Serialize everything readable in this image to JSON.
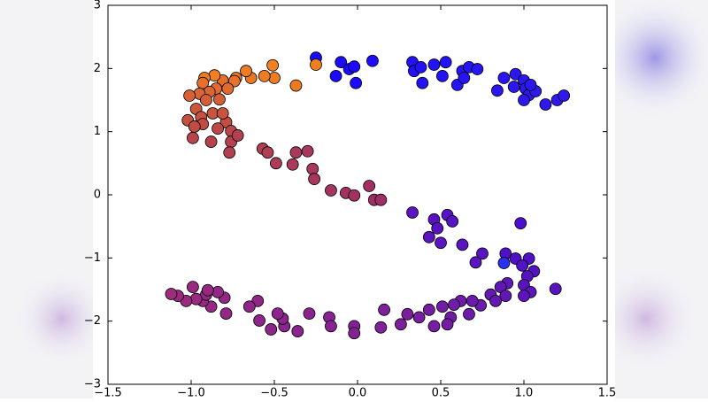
{
  "chart_data": {
    "type": "scatter",
    "x": [
      -0.25,
      -0.1,
      -0.13,
      -0.05,
      -0.02,
      -0.01,
      0.09,
      0.33,
      0.34,
      0.38,
      0.39,
      0.46,
      0.53,
      0.51,
      0.6,
      0.63,
      0.67,
      0.72,
      0.64,
      0.88,
      0.84,
      0.95,
      0.94,
      1.0,
      1.01,
      1.03,
      1.07,
      1.0,
      1.13,
      1.2,
      1.24,
      1.04,
      -0.25,
      -0.37,
      -0.51,
      -0.5,
      -0.56,
      -0.64,
      -0.67,
      -0.73,
      -0.81,
      -0.74,
      -0.86,
      -0.92,
      -0.93,
      -0.85,
      -0.89,
      -0.78,
      -0.95,
      -1.01,
      -0.91,
      -0.83,
      -0.97,
      -0.87,
      -0.94,
      -1.02,
      -0.93,
      -0.98,
      -0.79,
      -0.84,
      -0.76,
      -0.99,
      -0.88,
      -0.76,
      -0.77,
      -0.72,
      -0.81,
      -0.57,
      -0.54,
      -0.49,
      -0.39,
      -0.37,
      -0.3,
      -0.27,
      -0.26,
      -0.16,
      -0.07,
      -0.02,
      0.07,
      0.1,
      0.14,
      0.33,
      0.46,
      0.54,
      0.48,
      0.57,
      0.43,
      0.5,
      0.63,
      0.75,
      0.71,
      0.98,
      0.89,
      0.88,
      0.95,
      1.03,
      0.99,
      1.06,
      1.02,
      1.0,
      1.04,
      1.0,
      1.19,
      0.9,
      0.86,
      0.89,
      0.8,
      0.83,
      0.74,
      0.69,
      0.62,
      0.58,
      0.51,
      0.67,
      0.56,
      0.46,
      0.54,
      0.43,
      0.37,
      0.3,
      0.26,
      0.16,
      0.14,
      -0.02,
      -0.02,
      -0.17,
      -0.16,
      -0.29,
      -0.36,
      -0.44,
      -0.45,
      -0.48,
      -0.52,
      -0.59,
      -0.6,
      -0.65,
      -0.79,
      -0.8,
      -0.84,
      -0.88,
      -0.93,
      -0.91,
      -0.97,
      -1.03,
      -0.99,
      -1.08,
      -1.12,
      -0.9
    ],
    "values": [
      2.17,
      2.1,
      1.88,
      1.99,
      2.03,
      1.77,
      2.12,
      2.1,
      1.96,
      2.02,
      1.77,
      2.06,
      2.1,
      1.88,
      1.74,
      1.96,
      2.02,
      1.99,
      1.85,
      1.85,
      1.65,
      1.91,
      1.71,
      1.81,
      1.68,
      1.58,
      1.64,
      1.5,
      1.43,
      1.5,
      1.57,
      1.74,
      2.06,
      1.73,
      2.05,
      1.85,
      1.88,
      1.85,
      1.96,
      1.85,
      1.81,
      1.8,
      1.89,
      1.85,
      1.77,
      1.68,
      1.63,
      1.68,
      1.6,
      1.57,
      1.5,
      1.51,
      1.36,
      1.29,
      1.23,
      1.18,
      1.12,
      1.08,
      1.15,
      1.05,
      1.01,
      0.9,
      0.84,
      0.84,
      0.67,
      0.94,
      1.29,
      0.73,
      0.67,
      0.5,
      0.48,
      0.67,
      0.69,
      0.41,
      0.25,
      0.07,
      0.03,
      -0.01,
      0.14,
      -0.08,
      -0.08,
      -0.28,
      -0.39,
      -0.32,
      -0.53,
      -0.42,
      -0.67,
      -0.76,
      -0.79,
      -0.93,
      -1.07,
      -0.45,
      -0.93,
      -1.08,
      -1.01,
      -1.01,
      -1.12,
      -1.21,
      -1.29,
      -1.43,
      -1.54,
      -1.6,
      -1.49,
      -1.4,
      -1.46,
      -1.6,
      -1.58,
      -1.68,
      -1.75,
      -1.68,
      -1.68,
      -1.74,
      -1.77,
      -1.89,
      -1.94,
      -2.08,
      -2.05,
      -1.82,
      -1.94,
      -1.89,
      -2.05,
      -1.82,
      -2.1,
      -2.08,
      -2.19,
      -1.94,
      -2.08,
      -1.88,
      -2.16,
      -2.08,
      -1.96,
      -1.88,
      -2.13,
      -1.99,
      -1.68,
      -1.77,
      -1.88,
      -1.63,
      -1.54,
      -1.77,
      -1.68,
      -1.58,
      -1.65,
      -1.68,
      -1.46,
      -1.6,
      -1.57,
      -1.51
    ],
    "colors": [
      "#1a0aff",
      "#1c0aff",
      "#1c0aff",
      "#1c0aff",
      "#1c0aff",
      "#1c0aff",
      "#1e0cfc",
      "#2210f8",
      "#2210f8",
      "#2210f8",
      "#2210f8",
      "#2412f6",
      "#2412f6",
      "#2412f6",
      "#2614f4",
      "#2614f4",
      "#2614f4",
      "#2816f2",
      "#2614f4",
      "#2a16f0",
      "#2a16f0",
      "#2c18ee",
      "#2c18ee",
      "#2c18ee",
      "#2c18ee",
      "#2e18ec",
      "#2e18ec",
      "#2e18ec",
      "#3018ea",
      "#3018ea",
      "#3018ea",
      "#2c18ee",
      "#f0801c",
      "#ec7a20",
      "#f28020",
      "#ee7c22",
      "#ee7c22",
      "#ec7822",
      "#ee7c22",
      "#ea7426",
      "#e66e2a",
      "#e8722a",
      "#f08022",
      "#ec7a24",
      "#e4702a",
      "#e06a30",
      "#dc6632",
      "#e06a30",
      "#d86434",
      "#d66236",
      "#d45e38",
      "#d45e38",
      "#cc583c",
      "#c8543e",
      "#c85240",
      "#c45040",
      "#c04c44",
      "#c04c44",
      "#c24e44",
      "#bc4848",
      "#ba4648",
      "#b8444c",
      "#b6424c",
      "#b4424e",
      "#b24050",
      "#b24050",
      "#c8543e",
      "#b04054",
      "#ae3e56",
      "#ac3c58",
      "#aa3a5a",
      "#aa3a5a",
      "#a8385c",
      "#a8385c",
      "#a6365e",
      "#a43460",
      "#a23262",
      "#a23262",
      "#a03064",
      "#9e2e66",
      "#9e2e66",
      "#5a14c0",
      "#5812c2",
      "#5612c4",
      "#5812c2",
      "#5612c4",
      "#5a14c0",
      "#5a14c0",
      "#5a14c0",
      "#5814c2",
      "#5a14c0",
      "#4c10cc",
      "#5010c8",
      "#2a30f0",
      "#5010c8",
      "#5010c8",
      "#5212c6",
      "#5412c4",
      "#5612c2",
      "#5a14be",
      "#5c14bc",
      "#5e14ba",
      "#5a14be",
      "#6016b8",
      "#6216b6",
      "#6216b6",
      "#6418b4",
      "#6618b2",
      "#6a1aae",
      "#6c1aac",
      "#6e1aaa",
      "#701ca8",
      "#721ca6",
      "#6e1aaa",
      "#721ca6",
      "#761ea2",
      "#741ea4",
      "#761ea2",
      "#781ea0",
      "#7a209e",
      "#7c209c",
      "#7e209a",
      "#802298",
      "#822296",
      "#842294",
      "#862292",
      "#862292",
      "#882490",
      "#8a248e",
      "#8a248e",
      "#8c248c",
      "#8c248c",
      "#8e268a",
      "#8e268a",
      "#902688",
      "#902688",
      "#922886",
      "#922886",
      "#942884",
      "#942884",
      "#962882",
      "#962882",
      "#982a80",
      "#982a80",
      "#9a2a7e",
      "#9a2a7e",
      "#9c2c7c",
      "#962882"
    ],
    "xlim": [
      -1.5,
      1.5
    ],
    "ylim": [
      -3,
      3
    ],
    "xticks": [
      {
        "value": -1.5,
        "label": "−1.5"
      },
      {
        "value": -1.0,
        "label": "−1.0"
      },
      {
        "value": -0.5,
        "label": "−0.5"
      },
      {
        "value": 0.0,
        "label": "0.0"
      },
      0.5,
      {
        "value": 1.0,
        "label": "1.0"
      },
      1.5
    ],
    "yticks": [
      {
        "value": -3,
        "label": "−3"
      },
      {
        "value": -2,
        "label": "−2"
      },
      {
        "value": -1,
        "label": "−1"
      },
      0,
      1,
      2,
      3
    ]
  }
}
